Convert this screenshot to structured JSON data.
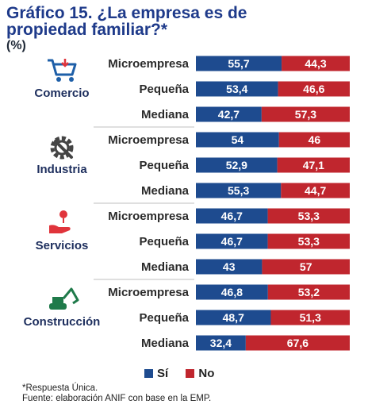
{
  "title": {
    "line1": "Gráfico 15. ¿La empresa es de",
    "line2": "propiedad familiar?*",
    "unit": "(%)"
  },
  "colors": {
    "si": "#1e4b8f",
    "no": "#c0262e",
    "sector_label": "#1e2f5e",
    "text": "#2b2b2b"
  },
  "chart_data": {
    "type": "bar",
    "orientation": "horizontal",
    "stacked": true,
    "xlim": [
      0,
      100
    ],
    "legend": {
      "position": "bottom",
      "entries": [
        "Sí",
        "No"
      ]
    },
    "groups": [
      {
        "sector": "Comercio",
        "icon": "shopping-cart-icon",
        "categories": [
          "Microempresa",
          "Pequeña",
          "Mediana"
        ],
        "si": [
          55.7,
          53.4,
          42.7
        ],
        "no": [
          44.3,
          46.6,
          57.3
        ],
        "si_labels": [
          "55,7",
          "53,4",
          "42,7"
        ],
        "no_labels": [
          "44,3",
          "46,6",
          "57,3"
        ]
      },
      {
        "sector": "Industria",
        "icon": "gear-wrench-icon",
        "categories": [
          "Microempresa",
          "Pequeña",
          "Mediana"
        ],
        "si": [
          54,
          52.9,
          55.3
        ],
        "no": [
          46,
          47.1,
          44.7
        ],
        "si_labels": [
          "54",
          "52,9",
          "55,3"
        ],
        "no_labels": [
          "46",
          "47,1",
          "44,7"
        ]
      },
      {
        "sector": "Servicios",
        "icon": "hand-service-icon",
        "categories": [
          "Microempresa",
          "Pequeña",
          "Mediana"
        ],
        "si": [
          46.7,
          46.7,
          43
        ],
        "no": [
          53.3,
          53.3,
          57
        ],
        "si_labels": [
          "46,7",
          "46,7",
          "43"
        ],
        "no_labels": [
          "53,3",
          "53,3",
          "57"
        ]
      },
      {
        "sector": "Construcción",
        "icon": "excavator-icon",
        "categories": [
          "Microempresa",
          "Pequeña",
          "Mediana"
        ],
        "si": [
          46.8,
          48.7,
          32.4
        ],
        "no": [
          53.2,
          51.3,
          67.6
        ],
        "si_labels": [
          "46,8",
          "48,7",
          "32,4"
        ],
        "no_labels": [
          "53,2",
          "51,3",
          "67,6"
        ]
      }
    ]
  },
  "legend": {
    "si_label": "Sí",
    "no_label": "No"
  },
  "notes": {
    "respuesta": "*Respuesta Única.",
    "fuente": "Fuente: elaboración ANIF con base en la EMP."
  }
}
